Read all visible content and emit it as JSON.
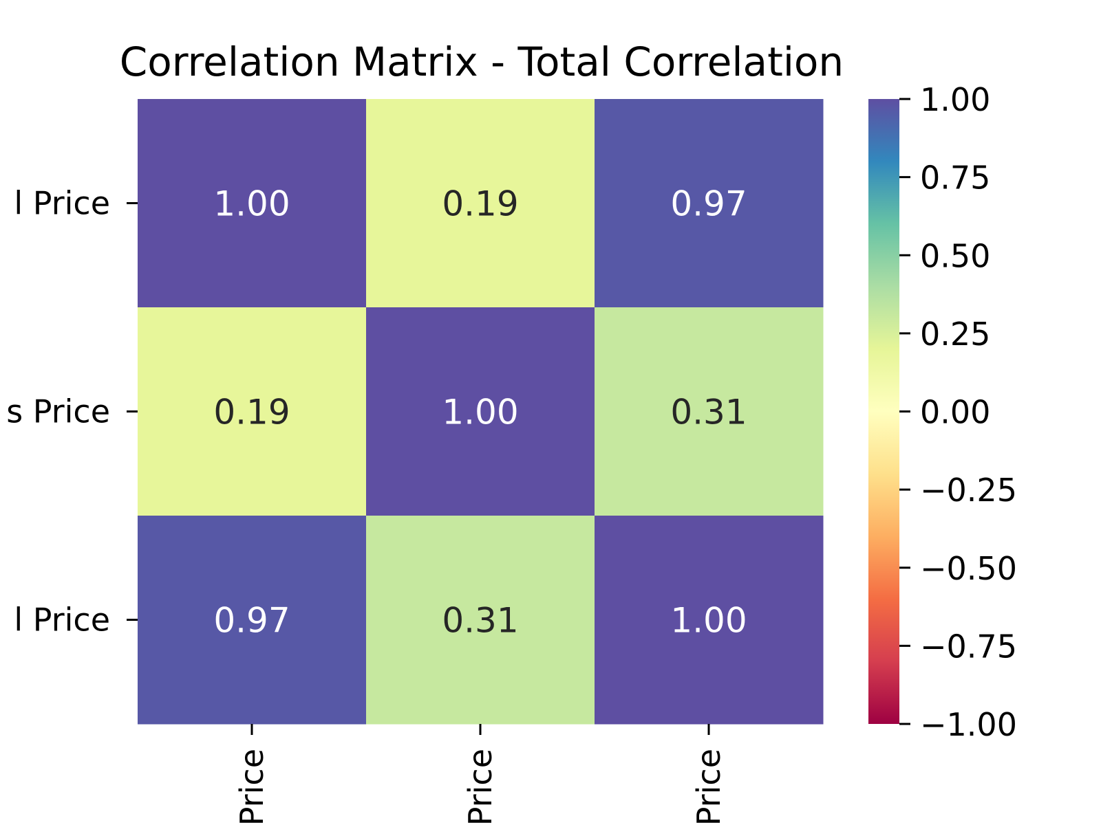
{
  "chart_data": {
    "type": "heatmap",
    "title": "Correlation Matrix - Total Correlation",
    "row_labels": [
      "l Price",
      "s Price",
      "l Price"
    ],
    "column_labels": [
      "Price",
      "Price",
      "Price"
    ],
    "values": [
      [
        1.0,
        0.19,
        0.97
      ],
      [
        0.19,
        1.0,
        0.31
      ],
      [
        0.97,
        0.31,
        1.0
      ]
    ],
    "cell_labels": [
      [
        "1.00",
        "0.19",
        "0.97"
      ],
      [
        "0.19",
        "1.00",
        "0.31"
      ],
      [
        "0.97",
        "0.31",
        "1.00"
      ]
    ],
    "colorbar": {
      "min": -1.0,
      "max": 1.0,
      "ticks": [
        1.0,
        0.75,
        0.5,
        0.25,
        0.0,
        -0.25,
        -0.5,
        -0.75,
        -1.0
      ],
      "tick_labels": [
        "1.00",
        "0.75",
        "0.50",
        "0.25",
        "0.00",
        "−0.25",
        "−0.50",
        "−0.75",
        "−1.00"
      ],
      "colormap": "Spectral",
      "colormap_stops": [
        "#9e0142",
        "#d53e4f",
        "#f46d43",
        "#fdae61",
        "#fee08b",
        "#ffffbf",
        "#e6f598",
        "#abdda4",
        "#66c2a5",
        "#3288bd",
        "#5e4fa2"
      ]
    },
    "colors": {
      "text_on_dark": "#ffffff",
      "text_on_light": "#262626"
    }
  }
}
